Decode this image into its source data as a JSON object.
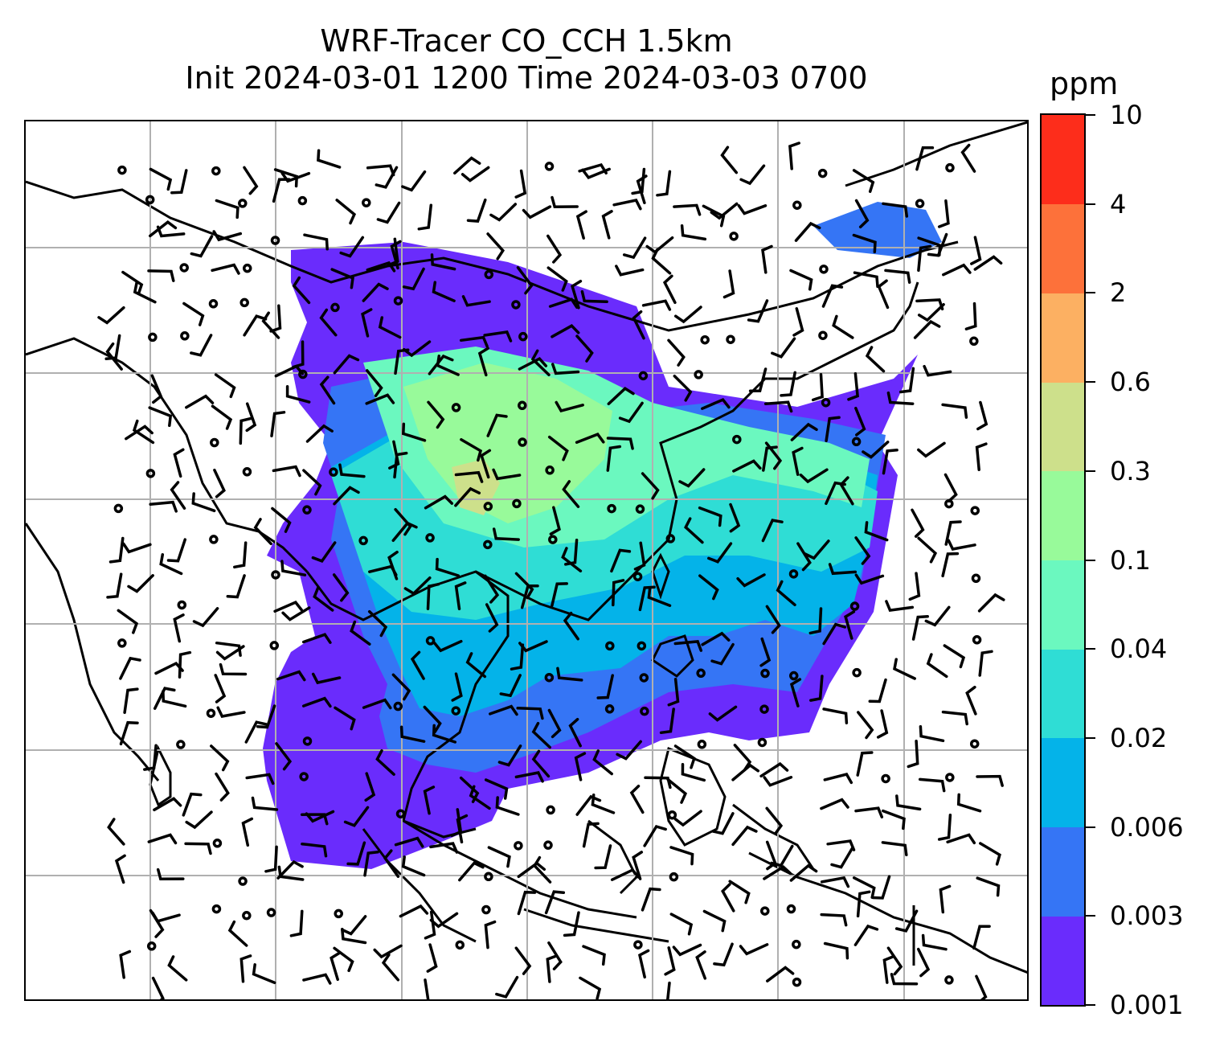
{
  "title": {
    "line1": "WRF-Tracer CO_CCH 1.5km",
    "line2": "Init 2024-03-01 1200 Time 2024-03-03 0700"
  },
  "colorbar": {
    "unit": "ppm",
    "levels": [
      "0.001",
      "0.003",
      "0.006",
      "0.02",
      "0.04",
      "0.1",
      "0.3",
      "0.6",
      "2",
      "4",
      "10"
    ],
    "colors": [
      "#6a2cfc",
      "#3575f5",
      "#04b3e9",
      "#2fddd5",
      "#6bf8bf",
      "#98fa9a",
      "#cde08b",
      "#fcb062",
      "#fd713a",
      "#fd2d1b"
    ]
  },
  "map": {
    "background": "#ffffff",
    "gridline_color": "#b0b0b0",
    "coastline_color": "#000000",
    "barb_color": "#000000"
  }
}
